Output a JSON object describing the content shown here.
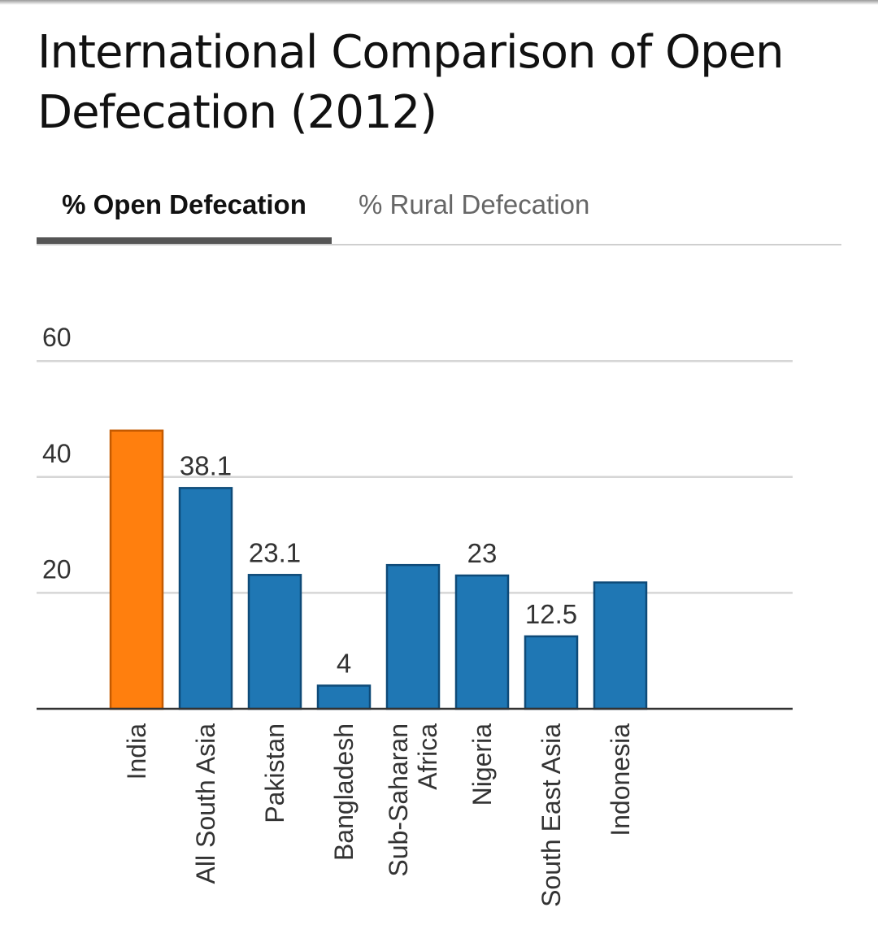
{
  "title": "International Comparison of Open Defecation (2012)",
  "tabs": [
    {
      "label": "% Open Defecation",
      "active": true
    },
    {
      "label": "% Rural Defecation",
      "active": false
    }
  ],
  "colors": {
    "highlight": "#FF7F0E",
    "highlight_stroke": "#C55A00",
    "bar": "#1F77B4",
    "bar_stroke": "#0E4A78",
    "grid": "#D6D6D6",
    "axis": "#333333",
    "text": "#333333"
  },
  "chart_data": {
    "type": "bar",
    "title": "International Comparison of Open Defecation (2012)",
    "xlabel": "",
    "ylabel": "",
    "ylim": [
      0,
      60
    ],
    "yticks": [
      20,
      40,
      60
    ],
    "categories": [
      "India",
      "All South Asia",
      "Pakistan",
      "Bangladesh",
      "Sub-Saharan Africa",
      "Nigeria",
      "South East Asia",
      "Indonesia"
    ],
    "category_label_lines": [
      [
        "India"
      ],
      [
        "All South Asia"
      ],
      [
        "Pakistan"
      ],
      [
        "Bangladesh"
      ],
      [
        "Sub-Saharan",
        "Africa"
      ],
      [
        "Nigeria"
      ],
      [
        "South East Asia"
      ],
      [
        "Indonesia"
      ]
    ],
    "series": [
      {
        "name": "% Open Defecation",
        "values": [
          48,
          38.1,
          23.1,
          4,
          24.8,
          23,
          12.5,
          21.8
        ]
      }
    ],
    "data_labels": [
      "",
      "38.1",
      "23.1",
      "4",
      "",
      "23",
      "12.5",
      ""
    ],
    "highlight_index": 0
  }
}
